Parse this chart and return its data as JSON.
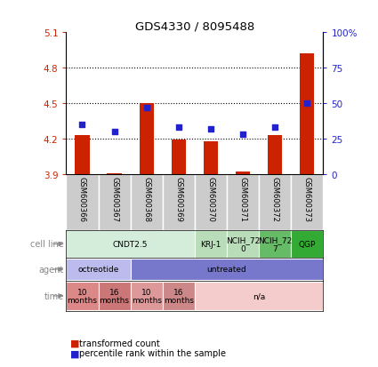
{
  "title": "GDS4330 / 8095488",
  "samples": [
    "GSM600366",
    "GSM600367",
    "GSM600368",
    "GSM600369",
    "GSM600370",
    "GSM600371",
    "GSM600372",
    "GSM600373"
  ],
  "bar_values": [
    4.23,
    3.91,
    4.5,
    4.19,
    4.18,
    3.92,
    4.23,
    4.92
  ],
  "bar_base": 3.9,
  "blue_values": [
    35,
    30,
    47,
    33,
    32,
    28,
    33,
    50
  ],
  "ylim_left": [
    3.9,
    5.1
  ],
  "ylim_right": [
    0,
    100
  ],
  "yticks_left": [
    3.9,
    4.2,
    4.5,
    4.8,
    5.1
  ],
  "yticks_right": [
    0,
    25,
    50,
    75,
    100
  ],
  "ytick_labels_left": [
    "3.9",
    "4.2",
    "4.5",
    "4.8",
    "5.1"
  ],
  "ytick_labels_right": [
    "0",
    "25",
    "50",
    "75",
    "100%"
  ],
  "bar_color": "#cc2200",
  "blue_color": "#2222cc",
  "cell_line_label": "cell line",
  "agent_label": "agent",
  "time_label": "time",
  "cell_lines": [
    {
      "label": "CNDT2.5",
      "start": 0,
      "end": 4,
      "color": "#d4edda"
    },
    {
      "label": "KRJ-1",
      "start": 4,
      "end": 5,
      "color": "#b8ddb8"
    },
    {
      "label": "NCIH_72\n0",
      "start": 5,
      "end": 6,
      "color": "#b8ddb8"
    },
    {
      "label": "NCIH_72\n7",
      "start": 6,
      "end": 7,
      "color": "#66bb66"
    },
    {
      "label": "QGP",
      "start": 7,
      "end": 8,
      "color": "#33aa33"
    }
  ],
  "agents": [
    {
      "label": "octreotide",
      "start": 0,
      "end": 2,
      "color": "#bbbbee"
    },
    {
      "label": "untreated",
      "start": 2,
      "end": 8,
      "color": "#7777cc"
    }
  ],
  "times": [
    {
      "label": "10\nmonths",
      "start": 0,
      "end": 1,
      "color": "#dd8888"
    },
    {
      "label": "16\nmonths",
      "start": 1,
      "end": 2,
      "color": "#cc7777"
    },
    {
      "label": "10\nmonths",
      "start": 2,
      "end": 3,
      "color": "#dd9999"
    },
    {
      "label": "16\nmonths",
      "start": 3,
      "end": 4,
      "color": "#cc8888"
    },
    {
      "label": "n/a",
      "start": 4,
      "end": 8,
      "color": "#f5cccc"
    }
  ],
  "legend_bar_label": "transformed count",
  "legend_blue_label": "percentile rank within the sample",
  "grid_dotted_at": [
    4.2,
    4.5,
    4.8
  ],
  "sample_box_color": "#cccccc",
  "row_label_color": "#888888",
  "arrow_color": "#888888"
}
